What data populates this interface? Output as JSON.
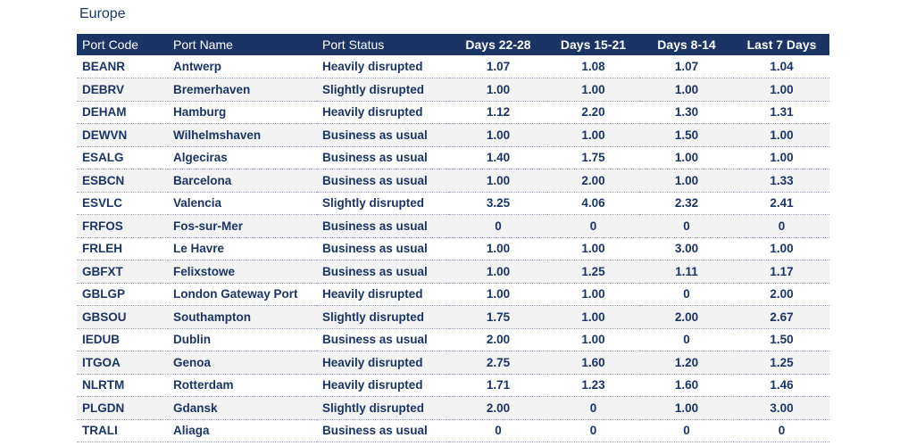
{
  "region": "Europe",
  "chart_data": {
    "type": "table",
    "columns": [
      "Port Code",
      "Port Name",
      "Port Status",
      "Days 22-28",
      "Days 15-21",
      "Days 8-14",
      "Last 7 Days"
    ],
    "rows": [
      [
        "BEANR",
        "Antwerp",
        "Heavily disrupted",
        "1.07",
        "1.08",
        "1.07",
        "1.04"
      ],
      [
        "DEBRV",
        "Bremerhaven",
        "Slightly disrupted",
        "1.00",
        "1.00",
        "1.00",
        "1.00"
      ],
      [
        "DEHAM",
        "Hamburg",
        "Heavily disrupted",
        "1.12",
        "2.20",
        "1.30",
        "1.31"
      ],
      [
        "DEWVN",
        "Wilhelmshaven",
        "Business as usual",
        "1.00",
        "1.00",
        "1.50",
        "1.00"
      ],
      [
        "ESALG",
        "Algeciras",
        "Business as usual",
        "1.40",
        "1.75",
        "1.00",
        "1.00"
      ],
      [
        "ESBCN",
        "Barcelona",
        "Business as usual",
        "1.00",
        "2.00",
        "1.00",
        "1.33"
      ],
      [
        "ESVLC",
        "Valencia",
        "Slightly disrupted",
        "3.25",
        "4.06",
        "2.32",
        "2.41"
      ],
      [
        "FRFOS",
        "Fos-sur-Mer",
        "Business as usual",
        "0",
        "0",
        "0",
        "0"
      ],
      [
        "FRLEH",
        "Le Havre",
        "Business as usual",
        "1.00",
        "1.00",
        "3.00",
        "1.00"
      ],
      [
        "GBFXT",
        "Felixstowe",
        "Business as usual",
        "1.00",
        "1.25",
        "1.11",
        "1.17"
      ],
      [
        "GBLGP",
        "London Gateway Port",
        "Heavily disrupted",
        "1.00",
        "1.00",
        "0",
        "2.00"
      ],
      [
        "GBSOU",
        "Southampton",
        "Slightly disrupted",
        "1.75",
        "1.00",
        "2.00",
        "2.67"
      ],
      [
        "IEDUB",
        "Dublin",
        "Business as usual",
        "2.00",
        "1.00",
        "0",
        "1.50"
      ],
      [
        "ITGOA",
        "Genoa",
        "Heavily disrupted",
        "2.75",
        "1.60",
        "1.20",
        "1.25"
      ],
      [
        "NLRTM",
        "Rotterdam",
        "Heavily disrupted",
        "1.71",
        "1.23",
        "1.60",
        "1.46"
      ],
      [
        "PLGDN",
        "Gdansk",
        "Slightly disrupted",
        "2.00",
        "0",
        "1.00",
        "3.00"
      ],
      [
        "TRALI",
        "Aliaga",
        "Business as usual",
        "0",
        "0",
        "0",
        "0"
      ]
    ]
  },
  "colors": {
    "header_bg": "#1b3466",
    "text": "#1b3466",
    "stripe": "#f3f3f3"
  }
}
